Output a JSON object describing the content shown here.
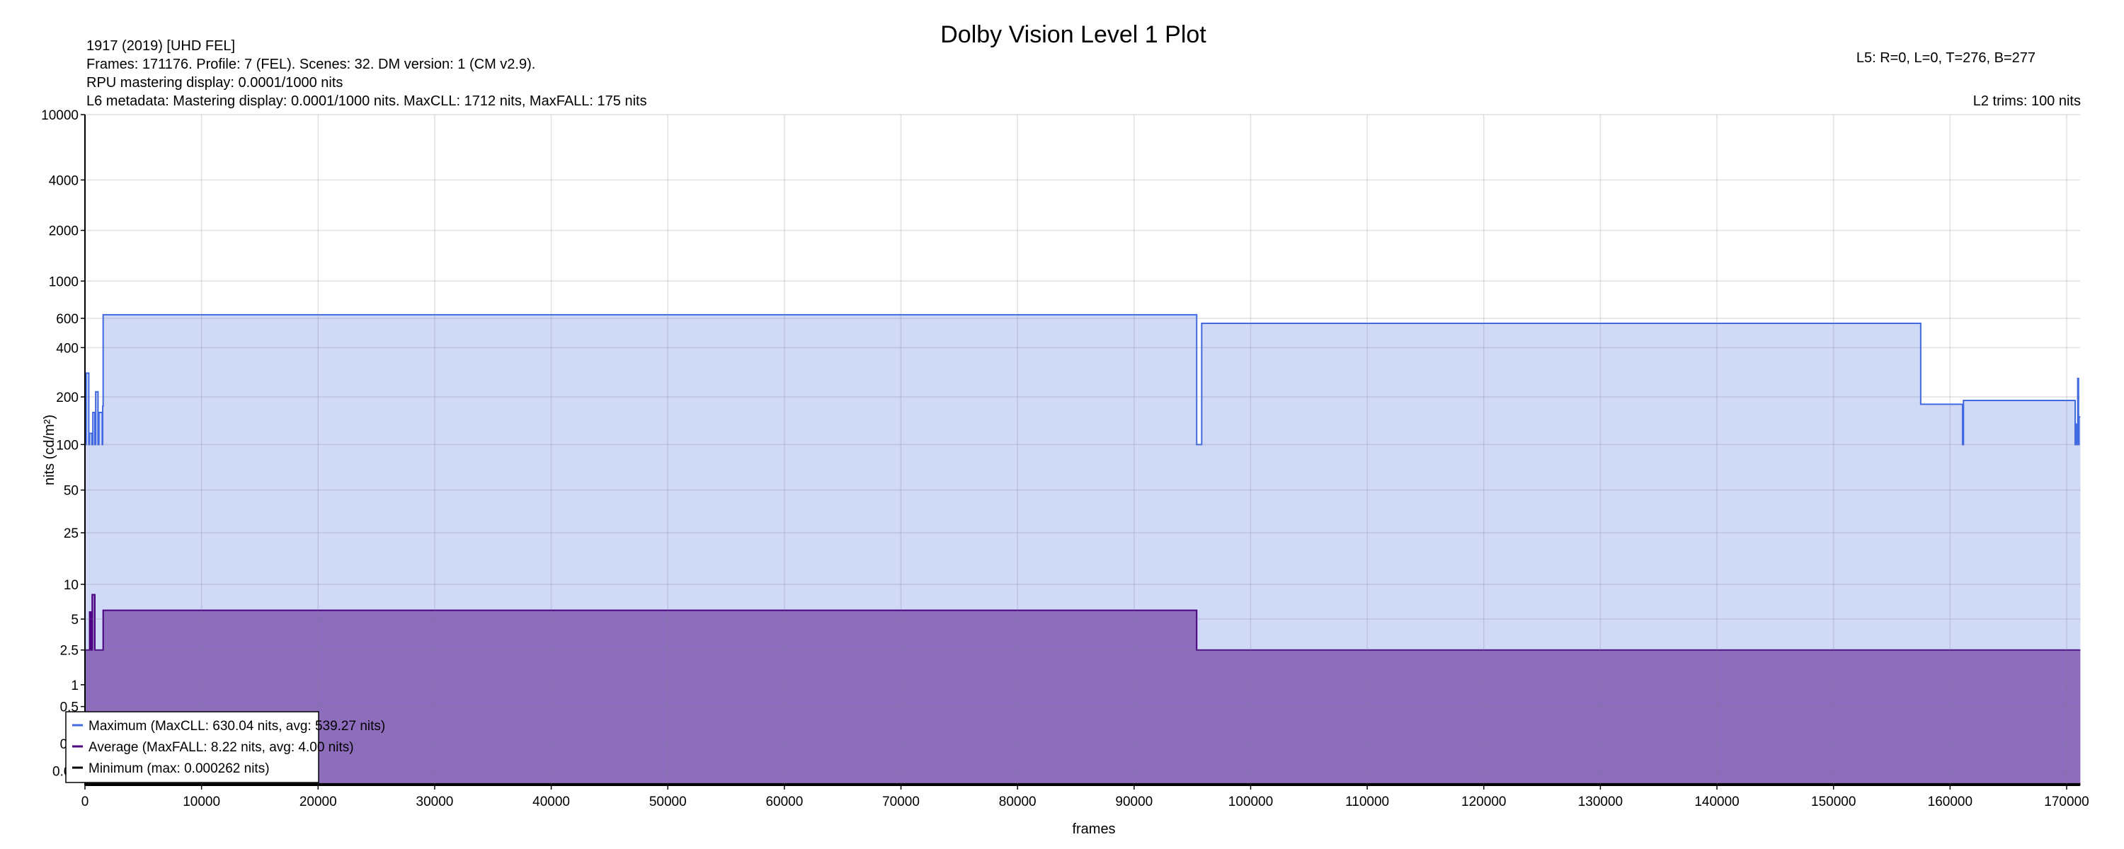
{
  "chart_data": {
    "type": "area",
    "title": "Dolby Vision Level 1 Plot",
    "info_left": [
      "1917 (2019) [UHD FEL]",
      "Frames: 171176. Profile: 7 (FEL). Scenes: 32. DM version: 1 (CM v2.9).",
      "RPU mastering display: 0.0001/1000 nits",
      "L6 metadata: Mastering display: 0.0001/1000 nits. MaxCLL: 1712 nits, MaxFALL: 175 nits"
    ],
    "info_right": [
      "L5: R=0, L=0, T=276, B=277",
      "L2 trims: 100 nits"
    ],
    "xlabel": "frames",
    "ylabel": "nits (cd/m²)",
    "y_scale": "PQ (perceptual quantizer)",
    "xlim": [
      0,
      171176
    ],
    "ylim": [
      0,
      10000
    ],
    "x_ticks": [
      0,
      10000,
      20000,
      30000,
      40000,
      50000,
      60000,
      70000,
      80000,
      90000,
      100000,
      110000,
      120000,
      130000,
      140000,
      150000,
      160000,
      170000
    ],
    "y_ticks": [
      0.01,
      0.1,
      0.5,
      1,
      2.5,
      5,
      10,
      25,
      50,
      100,
      200,
      400,
      600,
      1000,
      2000,
      4000,
      10000
    ],
    "y_tick_labels": [
      "0.01",
      "0.1",
      "0.5",
      "1",
      "2.5",
      "5",
      "10",
      "25",
      "50",
      "100",
      "200",
      "400",
      "600",
      "1000",
      "2000",
      "4000",
      "10000"
    ],
    "grid": true,
    "legend_placement": "bottom-left",
    "series": [
      {
        "name": "Maximum (MaxCLL: 630.04 nits, avg: 539.27 nits)",
        "color": "#4169e1",
        "fill": "#d0d9f6",
        "steps": [
          [
            0,
            100
          ],
          [
            100,
            280
          ],
          [
            330,
            100
          ],
          [
            390,
            118
          ],
          [
            600,
            100
          ],
          [
            680,
            160
          ],
          [
            850,
            100
          ],
          [
            920,
            215
          ],
          [
            1120,
            100
          ],
          [
            1200,
            160
          ],
          [
            1480,
            100
          ],
          [
            1520,
            175
          ],
          [
            1560,
            630
          ],
          [
            95370,
            100
          ],
          [
            95800,
            560
          ],
          [
            157480,
            180
          ],
          [
            161070,
            100
          ],
          [
            161150,
            190
          ],
          [
            170730,
            100
          ],
          [
            170800,
            135
          ],
          [
            170900,
            100
          ],
          [
            170950,
            260
          ],
          [
            171020,
            100
          ],
          [
            171060,
            150
          ],
          [
            171176,
            150
          ]
        ]
      },
      {
        "name": "Average (MaxFALL: 8.22 nits, avg: 4.00 nits)",
        "color": "#4b0082",
        "fill": "#8e6dbd",
        "steps": [
          [
            0,
            2.5
          ],
          [
            400,
            5.8
          ],
          [
            500,
            2.5
          ],
          [
            620,
            8.2
          ],
          [
            850,
            2.5
          ],
          [
            1560,
            6.0
          ],
          [
            95370,
            2.5
          ],
          [
            171176,
            2.5
          ]
        ]
      },
      {
        "name": "Minimum (max: 0.000262 nits)",
        "color": "#000000",
        "steps": [
          [
            0,
            0.0001
          ],
          [
            171176,
            0.0001
          ]
        ]
      }
    ]
  }
}
